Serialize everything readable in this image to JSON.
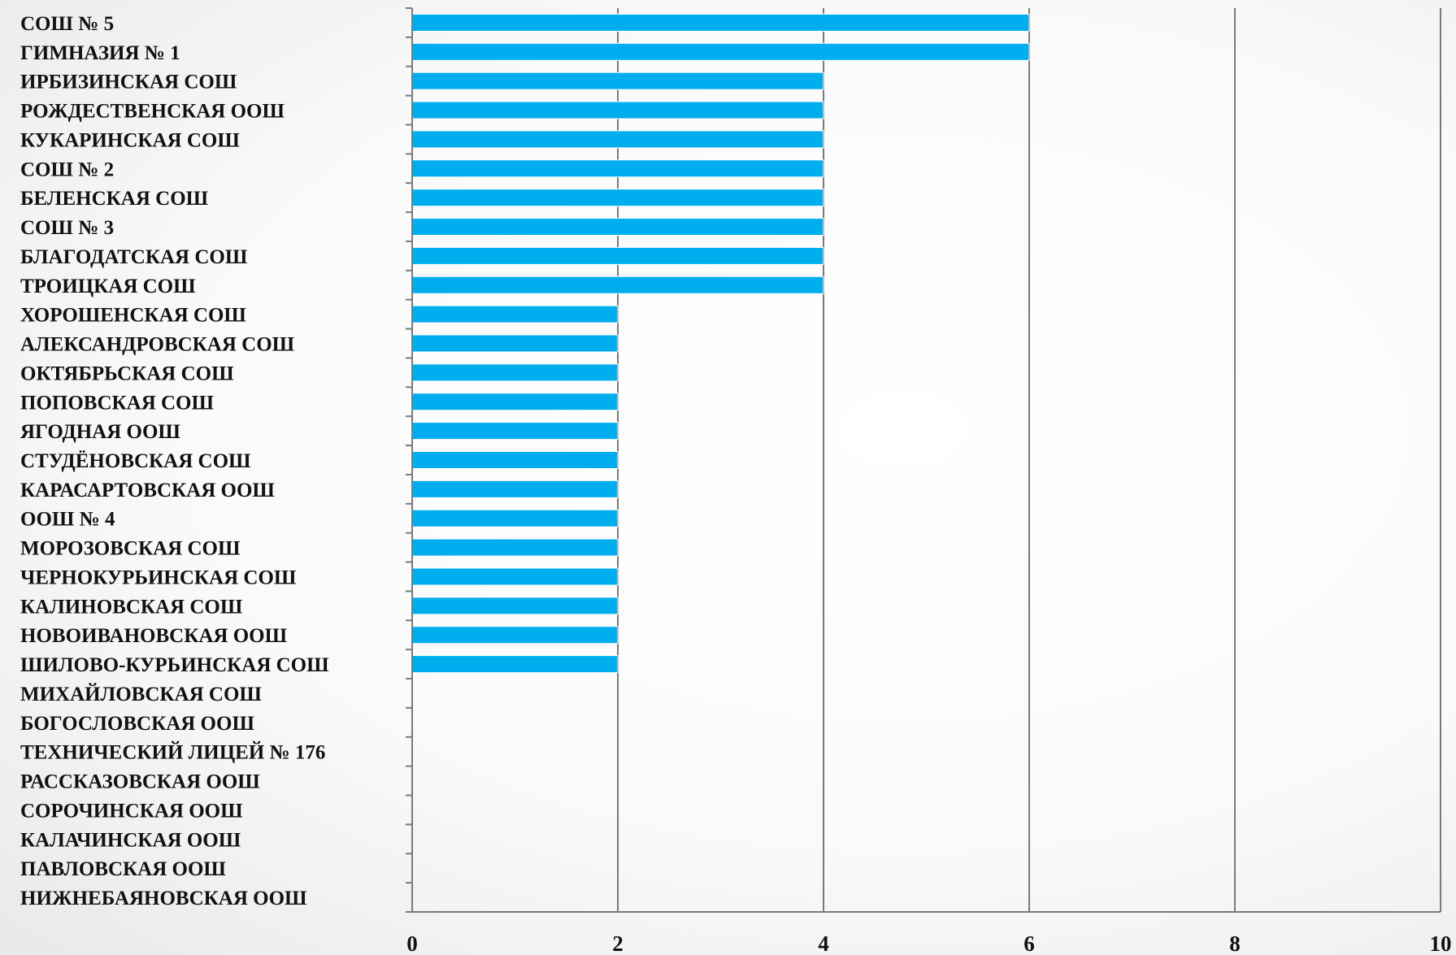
{
  "chart_data": {
    "type": "bar",
    "orientation": "horizontal",
    "title": "",
    "xlabel": "",
    "ylabel": "",
    "xlim": [
      0,
      10
    ],
    "xticks": [
      0,
      2,
      4,
      6,
      8,
      10
    ],
    "grid": "vertical",
    "color": "#00aeef",
    "categories": [
      "СОШ № 5",
      "ГИМНАЗИЯ № 1",
      "ИРБИЗИНСКАЯ  СОШ",
      "РОЖДЕСТВЕНСКАЯ ООШ",
      "КУКАРИНСКАЯ  СОШ",
      "СОШ № 2",
      "БЕЛЕНСКАЯ  СОШ",
      "СОШ № 3",
      "БЛАГОДАТСКАЯ  СОШ",
      "ТРОИЦКАЯ  СОШ",
      "ХОРОШЕНСКАЯ  СОШ",
      "АЛЕКСАНДРОВСКАЯ  СОШ",
      "ОКТЯБРЬСКАЯ  СОШ",
      "ПОПОВСКАЯ  СОШ",
      "ЯГОДНАЯ ООШ",
      "СТУДЁНОВСКАЯ  СОШ",
      "КАРАСАРТОВСКАЯ ООШ",
      "ООШ № 4",
      "МОРОЗОВСКАЯ  СОШ",
      "ЧЕРНОКУРЬИНСКАЯ  СОШ",
      "КАЛИНОВСКАЯ  СОШ",
      "НОВОИВАНОВСКАЯ ООШ",
      "ШИЛОВО-КУРЬИНСКАЯ  СОШ",
      "МИХАЙЛОВСКАЯ  СОШ",
      "БОГОСЛОВСКАЯ ООШ",
      "ТЕХНИЧЕСКИЙ ЛИЦЕЙ № 176",
      "РАССКАЗОВСКАЯ ООШ",
      "СОРОЧИНСКАЯ ООШ",
      "КАЛАЧИНСКАЯ ООШ",
      "ПАВЛОВСКАЯ ООШ",
      "НИЖНЕБАЯНОВСКАЯ ООШ"
    ],
    "values": [
      6,
      6,
      4,
      4,
      4,
      4,
      4,
      4,
      4,
      4,
      2,
      2,
      2,
      2,
      2,
      2,
      2,
      2,
      2,
      2,
      2,
      2,
      2,
      0,
      0,
      0,
      0,
      0,
      0,
      0,
      0
    ]
  }
}
